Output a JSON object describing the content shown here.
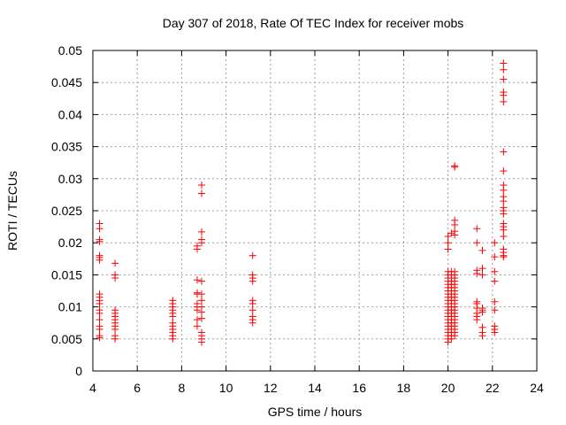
{
  "chart_data": {
    "type": "scatter",
    "title": "Day 307 of 2018, Rate Of TEC Index for receiver mobs",
    "xlabel": "GPS time / hours",
    "ylabel": "ROTI / TECUs",
    "xlim": [
      4,
      24
    ],
    "ylim": [
      0,
      0.05
    ],
    "xticks": [
      "4",
      "6",
      "8",
      "10",
      "12",
      "14",
      "16",
      "18",
      "20",
      "22",
      "24"
    ],
    "yticks": [
      "0",
      "0.005",
      "0.01",
      "0.015",
      "0.02",
      "0.025",
      "0.03",
      "0.035",
      "0.04",
      "0.045",
      "0.05"
    ],
    "grid": true,
    "marker": "+",
    "color": "#ff0000",
    "series": [
      {
        "name": "ROTI",
        "points": [
          [
            4.3,
            0.023
          ],
          [
            4.3,
            0.0222
          ],
          [
            4.3,
            0.0205
          ],
          [
            4.3,
            0.0202
          ],
          [
            4.3,
            0.018
          ],
          [
            4.3,
            0.0177
          ],
          [
            4.3,
            0.0173
          ],
          [
            4.3,
            0.012
          ],
          [
            4.3,
            0.0115
          ],
          [
            4.3,
            0.011
          ],
          [
            4.3,
            0.0105
          ],
          [
            4.3,
            0.0095
          ],
          [
            4.3,
            0.009
          ],
          [
            4.3,
            0.008
          ],
          [
            4.3,
            0.007
          ],
          [
            4.3,
            0.0065
          ],
          [
            4.3,
            0.0055
          ],
          [
            4.3,
            0.0052
          ],
          [
            5.0,
            0.0168
          ],
          [
            5.0,
            0.015
          ],
          [
            5.0,
            0.0145
          ],
          [
            5.0,
            0.0095
          ],
          [
            5.0,
            0.009
          ],
          [
            5.0,
            0.0085
          ],
          [
            5.0,
            0.008
          ],
          [
            5.0,
            0.0075
          ],
          [
            5.0,
            0.007
          ],
          [
            5.0,
            0.0065
          ],
          [
            5.0,
            0.0055
          ],
          [
            5.0,
            0.005
          ],
          [
            7.6,
            0.011
          ],
          [
            7.6,
            0.0105
          ],
          [
            7.6,
            0.01
          ],
          [
            7.6,
            0.0095
          ],
          [
            7.6,
            0.009
          ],
          [
            7.6,
            0.0085
          ],
          [
            7.6,
            0.0075
          ],
          [
            7.6,
            0.007
          ],
          [
            7.6,
            0.0065
          ],
          [
            7.6,
            0.006
          ],
          [
            7.6,
            0.0055
          ],
          [
            7.6,
            0.005
          ],
          [
            8.7,
            0.0195
          ],
          [
            8.7,
            0.019
          ],
          [
            8.7,
            0.0142
          ],
          [
            8.7,
            0.0122
          ],
          [
            8.7,
            0.012
          ],
          [
            8.7,
            0.0105
          ],
          [
            8.7,
            0.01
          ],
          [
            8.7,
            0.0095
          ],
          [
            8.7,
            0.008
          ],
          [
            8.7,
            0.007
          ],
          [
            8.9,
            0.029
          ],
          [
            8.9,
            0.0277
          ],
          [
            8.9,
            0.0217
          ],
          [
            8.9,
            0.0205
          ],
          [
            8.9,
            0.02
          ],
          [
            8.9,
            0.014
          ],
          [
            8.9,
            0.012
          ],
          [
            8.9,
            0.011
          ],
          [
            8.9,
            0.01
          ],
          [
            8.9,
            0.0092
          ],
          [
            8.9,
            0.0082
          ],
          [
            8.9,
            0.006
          ],
          [
            8.9,
            0.0055
          ],
          [
            8.9,
            0.005
          ],
          [
            8.9,
            0.0045
          ],
          [
            11.2,
            0.018
          ],
          [
            11.2,
            0.015
          ],
          [
            11.2,
            0.0145
          ],
          [
            11.2,
            0.014
          ],
          [
            11.2,
            0.011
          ],
          [
            11.2,
            0.0105
          ],
          [
            11.2,
            0.0095
          ],
          [
            11.2,
            0.0085
          ],
          [
            11.2,
            0.008
          ],
          [
            11.2,
            0.0075
          ],
          [
            20.0,
            0.021
          ],
          [
            20.0,
            0.02
          ],
          [
            20.0,
            0.019
          ],
          [
            20.0,
            0.0155
          ],
          [
            20.0,
            0.015
          ],
          [
            20.0,
            0.0145
          ],
          [
            20.0,
            0.014
          ],
          [
            20.0,
            0.0135
          ],
          [
            20.0,
            0.013
          ],
          [
            20.0,
            0.0125
          ],
          [
            20.0,
            0.012
          ],
          [
            20.0,
            0.0115
          ],
          [
            20.0,
            0.011
          ],
          [
            20.0,
            0.0105
          ],
          [
            20.0,
            0.01
          ],
          [
            20.0,
            0.0095
          ],
          [
            20.0,
            0.009
          ],
          [
            20.0,
            0.0085
          ],
          [
            20.0,
            0.008
          ],
          [
            20.0,
            0.0075
          ],
          [
            20.0,
            0.007
          ],
          [
            20.0,
            0.0065
          ],
          [
            20.0,
            0.006
          ],
          [
            20.0,
            0.0055
          ],
          [
            20.0,
            0.005
          ],
          [
            20.0,
            0.0045
          ],
          [
            20.15,
            0.0215
          ],
          [
            20.15,
            0.0155
          ],
          [
            20.15,
            0.015
          ],
          [
            20.15,
            0.0145
          ],
          [
            20.15,
            0.014
          ],
          [
            20.15,
            0.0135
          ],
          [
            20.15,
            0.013
          ],
          [
            20.15,
            0.0125
          ],
          [
            20.15,
            0.012
          ],
          [
            20.15,
            0.0115
          ],
          [
            20.15,
            0.011
          ],
          [
            20.15,
            0.0105
          ],
          [
            20.15,
            0.01
          ],
          [
            20.15,
            0.0095
          ],
          [
            20.15,
            0.009
          ],
          [
            20.15,
            0.0085
          ],
          [
            20.15,
            0.008
          ],
          [
            20.15,
            0.0075
          ],
          [
            20.15,
            0.007
          ],
          [
            20.15,
            0.0065
          ],
          [
            20.15,
            0.006
          ],
          [
            20.15,
            0.0055
          ],
          [
            20.15,
            0.005
          ],
          [
            20.3,
            0.032
          ],
          [
            20.3,
            0.0318
          ],
          [
            20.3,
            0.0235
          ],
          [
            20.3,
            0.0228
          ],
          [
            20.3,
            0.0218
          ],
          [
            20.3,
            0.0212
          ],
          [
            20.3,
            0.0155
          ],
          [
            20.3,
            0.015
          ],
          [
            20.3,
            0.0145
          ],
          [
            20.3,
            0.014
          ],
          [
            20.3,
            0.0135
          ],
          [
            20.3,
            0.013
          ],
          [
            20.3,
            0.0125
          ],
          [
            20.3,
            0.012
          ],
          [
            20.3,
            0.0115
          ],
          [
            20.3,
            0.011
          ],
          [
            20.3,
            0.0105
          ],
          [
            20.3,
            0.01
          ],
          [
            20.3,
            0.0095
          ],
          [
            20.3,
            0.009
          ],
          [
            20.3,
            0.0085
          ],
          [
            20.3,
            0.008
          ],
          [
            20.3,
            0.0075
          ],
          [
            20.3,
            0.007
          ],
          [
            20.3,
            0.0065
          ],
          [
            20.3,
            0.006
          ],
          [
            20.3,
            0.0055
          ],
          [
            21.3,
            0.0222
          ],
          [
            21.3,
            0.02
          ],
          [
            21.3,
            0.0157
          ],
          [
            21.3,
            0.0152
          ],
          [
            21.3,
            0.0108
          ],
          [
            21.3,
            0.0105
          ],
          [
            21.3,
            0.0098
          ],
          [
            21.3,
            0.009
          ],
          [
            21.3,
            0.0085
          ],
          [
            21.3,
            0.008
          ],
          [
            21.55,
            0.0188
          ],
          [
            21.55,
            0.016
          ],
          [
            21.55,
            0.015
          ],
          [
            21.55,
            0.0098
          ],
          [
            21.55,
            0.0095
          ],
          [
            21.55,
            0.0092
          ],
          [
            21.55,
            0.0068
          ],
          [
            21.55,
            0.006
          ],
          [
            21.55,
            0.0055
          ],
          [
            22.1,
            0.02
          ],
          [
            22.1,
            0.0178
          ],
          [
            22.1,
            0.0155
          ],
          [
            22.1,
            0.014
          ],
          [
            22.1,
            0.0108
          ],
          [
            22.1,
            0.0095
          ],
          [
            22.1,
            0.007
          ],
          [
            22.1,
            0.0065
          ],
          [
            22.1,
            0.006
          ],
          [
            22.5,
            0.048
          ],
          [
            22.5,
            0.047
          ],
          [
            22.5,
            0.0455
          ],
          [
            22.5,
            0.0435
          ],
          [
            22.5,
            0.043
          ],
          [
            22.5,
            0.042
          ],
          [
            22.5,
            0.0342
          ],
          [
            22.5,
            0.0312
          ],
          [
            22.5,
            0.029
          ],
          [
            22.5,
            0.0282
          ],
          [
            22.5,
            0.0272
          ],
          [
            22.5,
            0.0265
          ],
          [
            22.5,
            0.0255
          ],
          [
            22.5,
            0.025
          ],
          [
            22.5,
            0.0245
          ],
          [
            22.5,
            0.023
          ],
          [
            22.5,
            0.0225
          ],
          [
            22.5,
            0.022
          ],
          [
            22.5,
            0.021
          ],
          [
            22.5,
            0.019
          ],
          [
            22.5,
            0.0185
          ],
          [
            22.5,
            0.018
          ],
          [
            22.5,
            0.0178
          ]
        ]
      }
    ]
  }
}
